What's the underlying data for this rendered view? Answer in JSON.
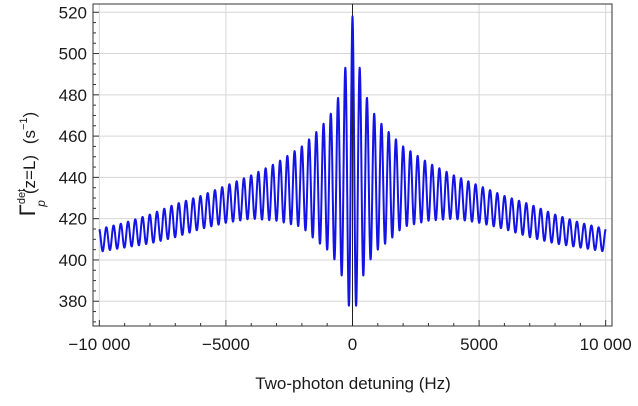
{
  "chart_data": {
    "type": "line",
    "title": "",
    "xlabel": "Two-photon detuning (Hz)",
    "ylabel_parts": {
      "gamma": "Γ",
      "superscript": "det",
      "subscript": "p",
      "argument": "(z=L)",
      "unit_open": "(s",
      "unit_exp": "−1",
      "unit_close": ")"
    },
    "xlim": [
      -10250,
      10250
    ],
    "ylim": [
      368,
      524
    ],
    "x_ticks": [
      -10000,
      -5000,
      0,
      5000,
      10000
    ],
    "x_tick_labels": [
      "−10 000",
      "−5000",
      "0",
      "5000",
      "10 000"
    ],
    "y_ticks": [
      380,
      400,
      420,
      440,
      460,
      480,
      500,
      520
    ],
    "y_tick_labels": [
      "380",
      "400",
      "420",
      "440",
      "460",
      "480",
      "500",
      "520"
    ],
    "grid": true,
    "series": [
      {
        "color": "#1414e6",
        "oscillation_period_hz": 286,
        "samples": {
          "x": [
            -10000,
            -9000,
            -8000,
            -7000,
            -6000,
            -5000,
            -4000,
            -3000,
            -2000,
            -1500,
            -1000,
            -700,
            -500,
            -300,
            -150,
            0,
            150,
            300,
            500,
            700,
            1000,
            1500,
            2000,
            3000,
            4000,
            5000,
            6000,
            7000,
            8000,
            9000,
            10000
          ],
          "lower_envelope": [
            404,
            406,
            408,
            411,
            415,
            418,
            420,
            419,
            416,
            410,
            405,
            400,
            395,
            388,
            378,
            374,
            378,
            388,
            395,
            400,
            405,
            410,
            416,
            419,
            420,
            418,
            415,
            411,
            408,
            406,
            404
          ],
          "upper_envelope": [
            415,
            418,
            422,
            427,
            431,
            436,
            441,
            447,
            455,
            461,
            468,
            474,
            481,
            492,
            503,
            518,
            503,
            492,
            481,
            474,
            468,
            461,
            455,
            447,
            441,
            436,
            431,
            427,
            422,
            418,
            415
          ]
        }
      }
    ]
  }
}
